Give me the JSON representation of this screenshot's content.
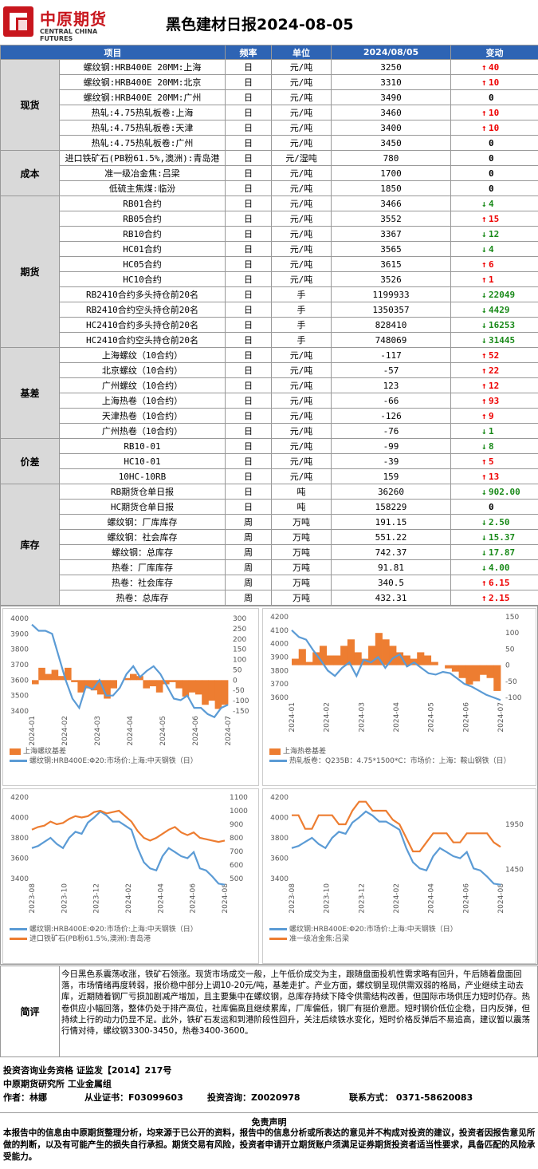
{
  "header": {
    "logo_cn": "中原期货",
    "logo_en": "CENTRAL CHINA FUTURES",
    "title": "黑色建材日报2024-08-05"
  },
  "table": {
    "columns": [
      "项目",
      "频率",
      "单位",
      "2024/08/05",
      "变动"
    ],
    "groups": [
      {
        "name": "现货",
        "rows": [
          [
            "螺纹钢:HRB400E 20MM:上海",
            "日",
            "元/吨",
            "3250",
            "40",
            "up"
          ],
          [
            "螺纹钢:HRB400E 20MM:北京",
            "日",
            "元/吨",
            "3310",
            "10",
            "up"
          ],
          [
            "螺纹钢:HRB400E 20MM:广州",
            "日",
            "元/吨",
            "3490",
            "0",
            "zero"
          ],
          [
            "热轧:4.75热轧板卷:上海",
            "日",
            "元/吨",
            "3460",
            "10",
            "up"
          ],
          [
            "热轧:4.75热轧板卷:天津",
            "日",
            "元/吨",
            "3400",
            "10",
            "up"
          ],
          [
            "热轧:4.75热轧板卷:广州",
            "日",
            "元/吨",
            "3450",
            "0",
            "zero"
          ]
        ]
      },
      {
        "name": "成本",
        "rows": [
          [
            "进口铁矿石(PB粉61.5%,澳洲):青岛港",
            "日",
            "元/湿吨",
            "780",
            "0",
            "zero"
          ],
          [
            "准一级冶金焦:吕梁",
            "日",
            "元/吨",
            "1700",
            "0",
            "zero"
          ],
          [
            "低硫主焦煤:临汾",
            "日",
            "元/吨",
            "1850",
            "0",
            "zero"
          ]
        ]
      },
      {
        "name": "期货",
        "rows": [
          [
            "RB01合约",
            "日",
            "元/吨",
            "3466",
            "4",
            "dn"
          ],
          [
            "RB05合约",
            "日",
            "元/吨",
            "3552",
            "15",
            "up"
          ],
          [
            "RB10合约",
            "日",
            "元/吨",
            "3367",
            "12",
            "dn"
          ],
          [
            "HC01合约",
            "日",
            "元/吨",
            "3565",
            "4",
            "dn"
          ],
          [
            "HC05合约",
            "日",
            "元/吨",
            "3615",
            "6",
            "up"
          ],
          [
            "HC10合约",
            "日",
            "元/吨",
            "3526",
            "1",
            "up"
          ],
          [
            "RB2410合约多头持仓前20名",
            "日",
            "手",
            "1199933",
            "22049",
            "dn"
          ],
          [
            "RB2410合约空头持仓前20名",
            "日",
            "手",
            "1350357",
            "4429",
            "dn"
          ],
          [
            "HC2410合约多头持仓前20名",
            "日",
            "手",
            "828410",
            "16253",
            "dn"
          ],
          [
            "HC2410合约空头持仓前20名",
            "日",
            "手",
            "748069",
            "31445",
            "dn"
          ]
        ]
      },
      {
        "name": "基差",
        "rows": [
          [
            "上海螺纹（10合约）",
            "日",
            "元/吨",
            "-117",
            "52",
            "up"
          ],
          [
            "北京螺纹（10合约）",
            "日",
            "元/吨",
            "-57",
            "22",
            "up"
          ],
          [
            "广州螺纹（10合约）",
            "日",
            "元/吨",
            "123",
            "12",
            "up"
          ],
          [
            "上海热卷（10合约）",
            "日",
            "元/吨",
            "-66",
            "93",
            "up"
          ],
          [
            "天津热卷（10合约）",
            "日",
            "元/吨",
            "-126",
            "9",
            "up"
          ],
          [
            "广州热卷（10合约）",
            "日",
            "元/吨",
            "-76",
            "1",
            "dn"
          ]
        ]
      },
      {
        "name": "价差",
        "rows": [
          [
            "RB10-01",
            "日",
            "元/吨",
            "-99",
            "8",
            "dn"
          ],
          [
            "HC10-01",
            "日",
            "元/吨",
            "-39",
            "5",
            "up"
          ],
          [
            "10HC-10RB",
            "日",
            "元/吨",
            "159",
            "13",
            "up"
          ]
        ]
      },
      {
        "name": "库存",
        "rows": [
          [
            "RB期货仓单日报",
            "日",
            "吨",
            "36260",
            "902.00",
            "dn"
          ],
          [
            "HC期货仓单日报",
            "日",
            "吨",
            "158229",
            "0",
            "zero"
          ],
          [
            "螺纹钢：厂库库存",
            "周",
            "万吨",
            "191.15",
            "2.50",
            "dn"
          ],
          [
            "螺纹钢：社会库存",
            "周",
            "万吨",
            "551.22",
            "15.37",
            "dn"
          ],
          [
            "螺纹钢：总库存",
            "周",
            "万吨",
            "742.37",
            "17.87",
            "dn"
          ],
          [
            "热卷：厂库库存",
            "周",
            "万吨",
            "91.81",
            "4.00",
            "dn"
          ],
          [
            "热卷：社会库存",
            "周",
            "万吨",
            "340.5",
            "6.15",
            "up"
          ],
          [
            "热卷：总库存",
            "周",
            "万吨",
            "432.31",
            "2.15",
            "up"
          ]
        ]
      }
    ]
  },
  "colors": {
    "header_blue": "#2e64b4",
    "up": "#e00000",
    "down": "#1a8a1a",
    "series_blue": "#5b9bd5",
    "series_orange": "#ed7d31",
    "logo_red": "#c8161d"
  },
  "chart_data": [
    {
      "type": "bar+line",
      "x_ticks": [
        "2024-01",
        "2024-02",
        "2024-03",
        "2024-04",
        "2024-05",
        "2024-06",
        "2024-07"
      ],
      "y_left_ticks": [
        "4000",
        "3900",
        "3800",
        "3700",
        "3600",
        "3500",
        "3400"
      ],
      "y_right_ticks": [
        "300",
        "250",
        "200",
        "150",
        "100",
        "50",
        "0",
        "-50",
        "-100",
        "-150"
      ],
      "y_left_lim": [
        3400,
        4000
      ],
      "y_right_lim": [
        -150,
        300
      ],
      "series": [
        {
          "name": "上海螺纹基差",
          "kind": "bar",
          "axis": "right",
          "values": [
            -20,
            60,
            30,
            50,
            20,
            60,
            -10,
            -60,
            -40,
            -50,
            -70,
            -90,
            -40,
            0,
            10,
            30,
            20,
            -40,
            -30,
            -60,
            -20,
            -10,
            -40,
            -80,
            -60,
            -70,
            -120,
            -100,
            -140,
            -120
          ]
        },
        {
          "name": "螺纹钢:HRB400E:Φ20:市场价:上海:中天钢铁（日）",
          "kind": "line",
          "axis": "left",
          "values": [
            3960,
            3920,
            3920,
            3900,
            3750,
            3600,
            3480,
            3420,
            3560,
            3540,
            3600,
            3500,
            3500,
            3550,
            3640,
            3690,
            3620,
            3660,
            3690,
            3640,
            3560,
            3480,
            3470,
            3500,
            3420,
            3420,
            3380,
            3360,
            3420,
            3440
          ]
        }
      ]
    },
    {
      "type": "bar+line",
      "x_ticks": [
        "2024-01",
        "2024-02",
        "2024-03",
        "2024-04",
        "2024-05",
        "2024-06",
        "2024-07"
      ],
      "y_left_ticks": [
        "4200",
        "4100",
        "4000",
        "3900",
        "3800",
        "3700",
        "3600"
      ],
      "y_right_ticks": [
        "150",
        "100",
        "50",
        "0",
        "-50",
        "-100"
      ],
      "y_left_lim": [
        3600,
        4200
      ],
      "y_right_lim": [
        -100,
        150
      ],
      "series": [
        {
          "name": "上海热卷基差",
          "kind": "bar",
          "axis": "right",
          "values": [
            20,
            50,
            10,
            40,
            60,
            30,
            30,
            60,
            80,
            40,
            20,
            60,
            100,
            80,
            60,
            40,
            30,
            20,
            40,
            30,
            10,
            0,
            -10,
            -20,
            -40,
            -60,
            -50,
            -30,
            -40,
            -80
          ]
        },
        {
          "name": "热轧板卷：Q235B：4.75*1500*C：市场价：上海：鞍山钢铁（日）",
          "kind": "line",
          "axis": "left",
          "values": [
            4100,
            4050,
            4030,
            3950,
            3880,
            3800,
            3760,
            3820,
            3860,
            3760,
            3880,
            3860,
            3900,
            3820,
            3890,
            3920,
            3830,
            3860,
            3820,
            3780,
            3770,
            3790,
            3780,
            3740,
            3700,
            3680,
            3650,
            3620,
            3600,
            3580
          ]
        }
      ]
    },
    {
      "type": "line",
      "x_ticks": [
        "2023-08",
        "2023-10",
        "2023-12",
        "2024-02",
        "2024-04",
        "2024-06",
        "2024-08"
      ],
      "y_left_ticks": [
        "4200",
        "4000",
        "3800",
        "3600",
        "3400"
      ],
      "y_right_ticks": [
        "1100",
        "1000",
        "900",
        "800",
        "700",
        "600",
        "500"
      ],
      "y_left_lim": [
        3400,
        4200
      ],
      "y_right_lim": [
        500,
        1100
      ],
      "series": [
        {
          "name": "螺纹钢:HRB400E:Φ20:市场价:上海:中天钢铁（日）",
          "axis": "left",
          "color": "blue",
          "values": [
            3700,
            3720,
            3760,
            3800,
            3740,
            3700,
            3800,
            3860,
            3840,
            3950,
            4000,
            4060,
            4020,
            3960,
            3960,
            3920,
            3880,
            3700,
            3560,
            3500,
            3480,
            3620,
            3700,
            3660,
            3620,
            3600,
            3660,
            3500,
            3480,
            3420,
            3350,
            3340
          ]
        },
        {
          "name": "进口铁矿石(PB粉61.5%,澳洲):青岛港",
          "axis": "right",
          "color": "orange",
          "values": [
            860,
            880,
            890,
            920,
            900,
            910,
            940,
            960,
            950,
            960,
            990,
            1000,
            980,
            990,
            1000,
            960,
            920,
            850,
            800,
            780,
            800,
            830,
            860,
            880,
            840,
            820,
            840,
            800,
            790,
            780,
            770,
            780
          ]
        }
      ]
    },
    {
      "type": "line",
      "x_ticks": [
        "2023-08",
        "2023-10",
        "2023-12",
        "2024-02",
        "2024-04",
        "2024-06",
        "2024-08"
      ],
      "y_left_ticks": [
        "4200",
        "4000",
        "3800",
        "3600",
        "3400"
      ],
      "y_right_ticks": [
        "1950",
        "1450"
      ],
      "y_left_lim": [
        3400,
        4200
      ],
      "y_right_lim": [
        1350,
        2250
      ],
      "series": [
        {
          "name": "螺纹钢:HRB400E:Φ20:市场价:上海:中天钢铁（日）",
          "axis": "left",
          "color": "blue",
          "values": [
            3700,
            3720,
            3760,
            3800,
            3740,
            3700,
            3800,
            3860,
            3840,
            3950,
            4000,
            4060,
            4020,
            3960,
            3960,
            3920,
            3880,
            3700,
            3560,
            3500,
            3480,
            3620,
            3700,
            3660,
            3620,
            3600,
            3660,
            3500,
            3480,
            3420,
            3350,
            3340
          ]
        },
        {
          "name": "准一级冶金焦:吕梁",
          "axis": "right",
          "color": "orange",
          "values": [
            2050,
            2050,
            1900,
            1900,
            2050,
            2050,
            2050,
            1950,
            1950,
            2100,
            2200,
            2200,
            2100,
            2100,
            2100,
            2000,
            1950,
            1800,
            1650,
            1650,
            1750,
            1850,
            1850,
            1850,
            1750,
            1750,
            1850,
            1850,
            1850,
            1850,
            1750,
            1700
          ]
        }
      ]
    }
  ],
  "comment": {
    "label": "简评",
    "text": "今日黑色系震荡收涨，铁矿石领涨。现货市场成交一般，上午低价成交为主，跟随盘面投机性需求略有回升，午后随着盘面回落，市场情绪再度转弱，报价稳中部分上调10-20元/吨，基差走扩。产业方面，螺纹钢呈现供需双弱的格局，产业继续主动去库，近期随着钢厂亏损加剧减产增加，且主要集中在螺纹钢，总库存持续下降令供需结构改善，但国际市场供压力短时仍存。热卷供应小幅回落，整体仍处于排产高位，社库偏高且继续累库，厂库偏低，钢厂有挺价意愿。短时钢价低位企稳，日内反弹，但持续上行的动力仍显不足。此外，铁矿石发运和到港阶段性回升，关注后续铁水变化，短时价格反弹后不易追高，建议暂以震荡行情对待，螺纹钢3300-3450，热卷3400-3600。"
  },
  "info": {
    "qual": "投资咨询业务资格  证监发【2014】217号",
    "dept": "中原期货研究所  工业金属组",
    "author": "作者：林娜",
    "cert": "从业证书：F03099603",
    "consult": "投资咨询：Z0020978",
    "contact": "联系方式：  0371-58620083"
  },
  "disclaimer": {
    "title": "免责声明",
    "body": "本报告中的信息由中原期货整理分析，均来源于已公开的资料，报告中的信息分析或所表达的意见并不构成对投资的建议，投资者因报告意见所做的判断，以及有可能产生的损失自行承担。期货交易有风险，投资者申请开立期货账户须满足证券期货投资者适当性要求，具备匹配的风险承受能力。"
  }
}
